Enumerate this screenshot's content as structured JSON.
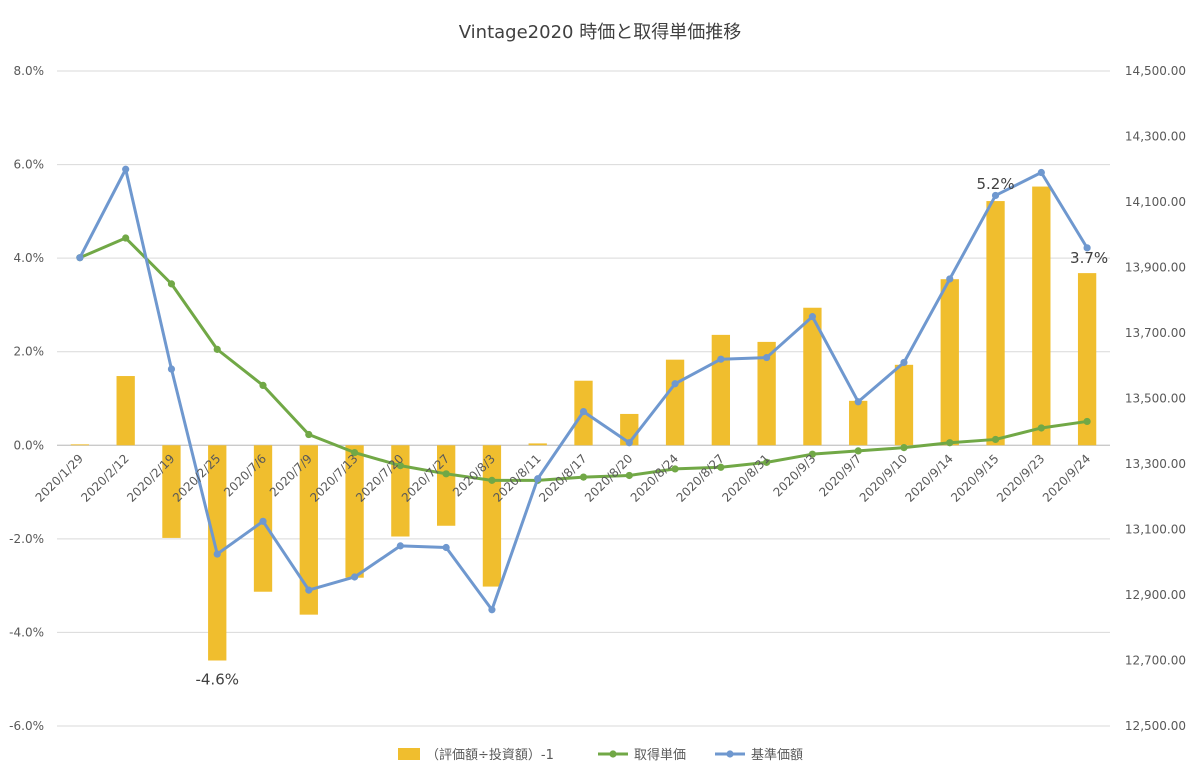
{
  "chart_data": {
    "type": "bar",
    "title": "Vintage2020 時価と取得単価推移",
    "categories": [
      "2020/1/29",
      "2020/2/12",
      "2020/2/19",
      "2020/2/25",
      "2020/7/6",
      "2020/7/9",
      "2020/7/13",
      "2020/7/20",
      "2020/7/27",
      "2020/8/3",
      "2020/8/11",
      "2020/8/17",
      "2020/8/20",
      "2020/8/24",
      "2020/8/27",
      "2020/8/31",
      "2020/9/3",
      "2020/9/7",
      "2020/9/10",
      "2020/9/14",
      "2020/9/15",
      "2020/9/23",
      "2020/9/24"
    ],
    "left_axis": {
      "ylim": [
        -0.06,
        0.08
      ],
      "ticks": [
        -0.06,
        -0.04,
        -0.02,
        0.0,
        0.02,
        0.04,
        0.06,
        0.08
      ],
      "tick_labels": [
        "-6.0%",
        "-4.0%",
        "-2.0%",
        "0.0%",
        "2.0%",
        "4.0%",
        "6.0%",
        "8.0%"
      ]
    },
    "right_axis": {
      "ylim": [
        12500,
        14500
      ],
      "ticks": [
        12500,
        12700,
        12900,
        13100,
        13300,
        13500,
        13700,
        13900,
        14100,
        14300,
        14500
      ],
      "tick_labels": [
        "12,500.00",
        "12,700.00",
        "12,900.00",
        "13,100.00",
        "13,300.00",
        "13,500.00",
        "13,700.00",
        "13,900.00",
        "14,100.00",
        "14,300.00",
        "14,500.00"
      ]
    },
    "series": [
      {
        "name": "（評価額÷投資額）-1",
        "kind": "bar",
        "axis": "left",
        "color": "#F0BE2E",
        "values": [
          0.0002,
          0.0148,
          -0.0198,
          -0.046,
          -0.0313,
          -0.0362,
          -0.0283,
          -0.0195,
          -0.0172,
          -0.0302,
          0.0004,
          0.0138,
          0.0067,
          0.0183,
          0.0236,
          0.0221,
          0.0294,
          0.0095,
          0.0172,
          0.0355,
          0.0522,
          0.0553,
          0.0368
        ]
      },
      {
        "name": "取得単価",
        "kind": "line",
        "axis": "right",
        "color": "#71A846",
        "values": [
          13930,
          13990,
          13850,
          13650,
          13540,
          13390,
          13335,
          13295,
          13270,
          13250,
          13250,
          13260,
          13265,
          13285,
          13290,
          13305,
          13330,
          13340,
          13350,
          13365,
          13375,
          13410,
          13430
        ]
      },
      {
        "name": "基準価額",
        "kind": "line",
        "axis": "right",
        "color": "#6F98CF",
        "values": [
          13930,
          14200,
          13590,
          13025,
          13125,
          12915,
          12955,
          13050,
          13045,
          12855,
          13255,
          13460,
          13365,
          13545,
          13620,
          13625,
          13750,
          13490,
          13610,
          13865,
          14120,
          14190,
          13960
        ]
      }
    ],
    "annotations": [
      {
        "text": "-4.6%",
        "category": "2020/2/25"
      },
      {
        "text": "5.2%",
        "category": "2020/9/15"
      },
      {
        "text": "3.7%",
        "category": "2020/9/24"
      }
    ],
    "grid": true,
    "legend_position": "bottom"
  }
}
